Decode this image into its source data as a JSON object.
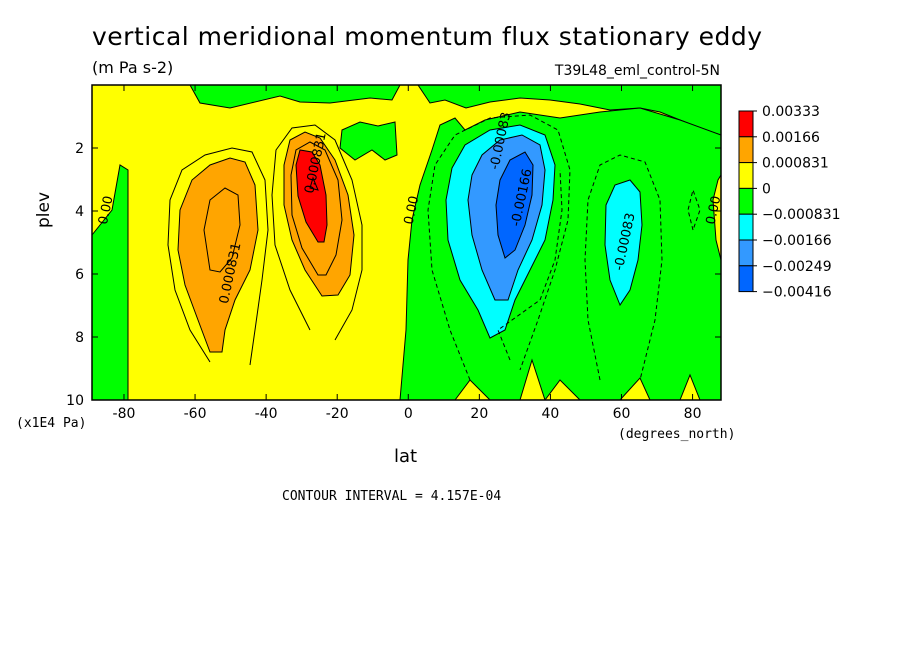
{
  "title": "vertical meridional momentum flux stationary eddy",
  "units": "(m Pa s-2)",
  "dataset": "T39L48_eml_control-5N",
  "ylabel": "plev",
  "yunits": "(x1E4 Pa)",
  "xlabel": "lat",
  "xunits": "(degrees_north)",
  "contour_interval_text": "CONTOUR INTERVAL = 4.157E-04",
  "chart_data": {
    "type": "heatmap",
    "title": "vertical meridional momentum flux stationary eddy",
    "xlabel": "lat",
    "ylabel": "plev",
    "x_units": "degrees_north",
    "y_units": "x1E4 Pa",
    "xlim": [
      -89,
      88
    ],
    "ylim": [
      10,
      0
    ],
    "x_ticks": [
      -80,
      -60,
      -40,
      -20,
      0,
      20,
      40,
      60,
      80
    ],
    "y_ticks": [
      2,
      4,
      6,
      8,
      10
    ],
    "contour_interval": 0.0004157,
    "legend": [
      {
        "label": "0.00333",
        "color": "#ff0000"
      },
      {
        "label": "0.00166",
        "color": "#ffa500"
      },
      {
        "label": "0.000831",
        "color": "#ffa500"
      },
      {
        "label": "0",
        "color": "#ffff00"
      },
      {
        "label": "−0.000831",
        "color": "#00ff00"
      },
      {
        "label": "−0.00166",
        "color": "#00ffff"
      },
      {
        "label": "−0.00249",
        "color": "#3399ff"
      },
      {
        "label": "−0.00416",
        "color": "#0066ff"
      }
    ],
    "legend_colors_order": [
      "#ff0000",
      "#ffa500",
      "#ffff00",
      "#00ff00",
      "#00ffff",
      "#3399ff",
      "#0066ff"
    ],
    "contour_labels": [
      {
        "text": "0.00",
        "lat": -84,
        "plev": 4.0
      },
      {
        "text": "0.000831",
        "lat": -49,
        "plev": 6.0
      },
      {
        "text": "0.000831",
        "lat": -25,
        "plev": 2.5
      },
      {
        "text": "0.00",
        "lat": 2,
        "plev": 4.0
      },
      {
        "text": "-0.00083",
        "lat": 27,
        "plev": 1.8
      },
      {
        "text": "-0.00166",
        "lat": 33,
        "plev": 3.6
      },
      {
        "text": "-0.00083",
        "lat": 62,
        "plev": 5.0
      },
      {
        "text": "0.00",
        "lat": 87,
        "plev": 4.0
      }
    ],
    "features": [
      {
        "sign": "positive",
        "center_lat": -55,
        "center_plev": 4.5,
        "peak_level": "0.000831"
      },
      {
        "sign": "positive",
        "center_lat": -25,
        "center_plev": 3.2,
        "peak_level": "0.00333"
      },
      {
        "sign": "negative",
        "center_lat": 30,
        "center_plev": 4.0,
        "peak_level": "-0.00416"
      },
      {
        "sign": "negative",
        "center_lat": 62,
        "center_plev": 4.8,
        "peak_level": "-0.00166"
      }
    ]
  }
}
